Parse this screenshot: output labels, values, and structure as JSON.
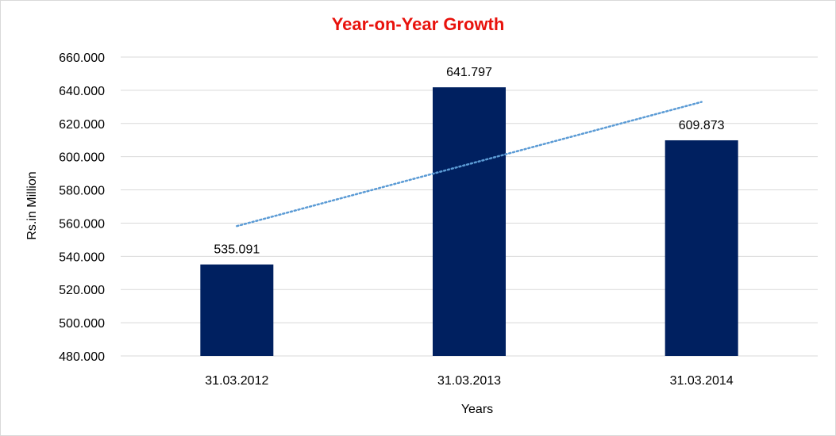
{
  "chart_data": {
    "type": "bar",
    "title": "Year-on-Year Growth",
    "xlabel": "Years",
    "ylabel": "Rs.in Million",
    "categories": [
      "31.03.2012",
      "31.03.2013",
      "31.03.2014"
    ],
    "values": [
      535.091,
      641.797,
      609.873
    ],
    "data_labels": [
      "535.091",
      "641.797",
      "609.873"
    ],
    "ylim": [
      480,
      660
    ],
    "yticks": [
      "480.000",
      "500.000",
      "520.000",
      "540.000",
      "560.000",
      "580.000",
      "600.000",
      "620.000",
      "640.000",
      "660.000"
    ],
    "grid": true,
    "trendline": {
      "type": "linear",
      "style": "dotted"
    },
    "legend": "none",
    "colors": {
      "bar": "#002060",
      "title": "#e8120c",
      "trendline": "#5b9bd5",
      "grid": "#d9d9d9"
    }
  }
}
